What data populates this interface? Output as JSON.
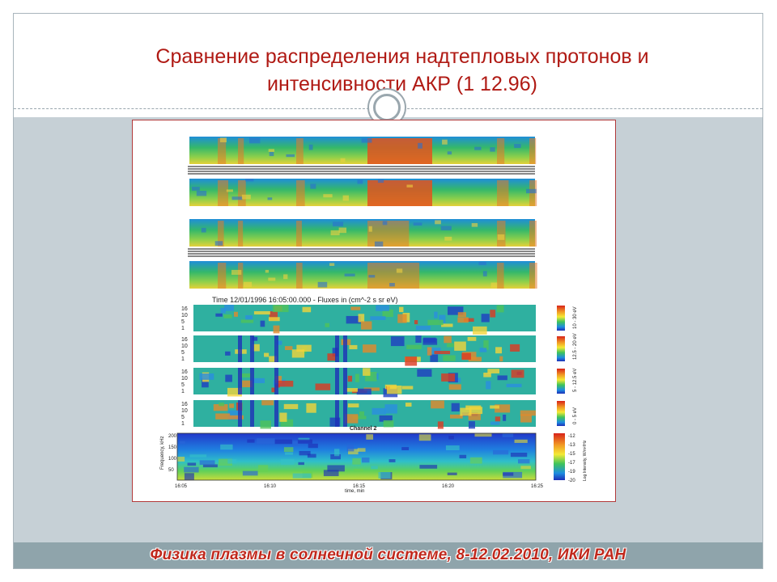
{
  "slide": {
    "title_line1": "Сравнение распределения надтепловых протонов и",
    "title_line2": "интенсивности АКР (1 12.96)",
    "footer": "Физика плазмы в солнечной системе, 8-12.02.2010, ИКИ РАН"
  },
  "figure": {
    "header_text": "Time 12/01/1996 16:05:00.000 - Fluxes in (cm^-2 s sr eV)",
    "channel_label": "Channel 2",
    "small_y_ticks": [
      "16",
      "10",
      "5",
      "1"
    ],
    "energy_labels": [
      "10 - 30 eV",
      "12.5 - 20 eV",
      "5 - 12.5 eV",
      "0 - 5 eV"
    ],
    "spectrogram": {
      "y_axis_label": "Frequency, kHz",
      "y_ticks": [
        "200",
        "150",
        "100",
        "50"
      ],
      "x_ticks": [
        "16:05",
        "16:10",
        "16:15",
        "16:20",
        "16:25"
      ],
      "x_axis_label": "time, min",
      "colorbar_ticks": [
        "-12",
        "-13",
        "-15",
        "-17",
        "-19",
        "-20"
      ],
      "colorbar_label": "Log Intensity, W/m²/Hz"
    }
  },
  "colors": {
    "title": "#b01a14",
    "footer_text": "#c0281c",
    "frame_bg": "#c6d0d6",
    "footer_bg": "#8fa4ab"
  }
}
